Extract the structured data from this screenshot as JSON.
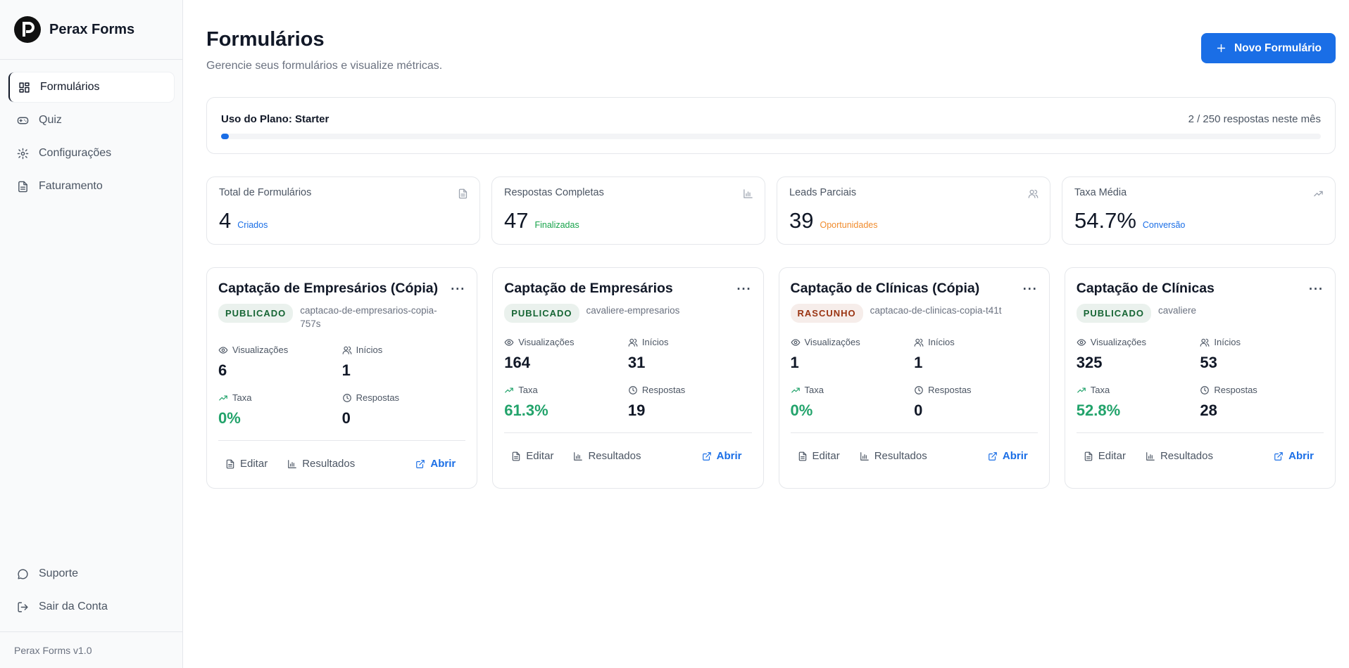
{
  "sidebar": {
    "brand": "Perax Forms",
    "nav": [
      "Formulários",
      "Quiz",
      "Configurações",
      "Faturamento"
    ],
    "bottom": [
      "Suporte",
      "Sair da Conta"
    ],
    "version": "Perax Forms v1.0"
  },
  "header": {
    "title": "Formulários",
    "subtitle": "Gerencie seus formulários e visualize métricas.",
    "button": "Novo Formulário"
  },
  "plan": {
    "label": "Uso do Plano: Starter",
    "usage": "2 / 250 respostas neste mês"
  },
  "stats": [
    {
      "label": "Total de Formulários",
      "value": "4",
      "note": "Criados"
    },
    {
      "label": "Respostas Completas",
      "value": "47",
      "note": "Finalizadas"
    },
    {
      "label": "Leads Parciais",
      "value": "39",
      "note": "Oportunidades"
    },
    {
      "label": "Taxa Média",
      "value": "54.7%",
      "note": "Conversão"
    }
  ],
  "forms": [
    {
      "title": "Captação de Empresários (Cópia)",
      "status": "PUBLICADO",
      "status_color": "#166534",
      "slug": "captacao-de-empresarios-copia-757s",
      "metrics": [
        {
          "label": "Visualizações",
          "value": "6"
        },
        {
          "label": "Inícios",
          "value": "1"
        },
        {
          "label": "Taxa",
          "value": "0%"
        },
        {
          "label": "Respostas",
          "value": "0"
        }
      ],
      "actions": [
        "Editar",
        "Resultados",
        "Abrir"
      ]
    },
    {
      "title": "Captação de Empresários",
      "status": "PUBLICADO",
      "status_color": "#166534",
      "slug": "cavaliere-empresarios",
      "metrics": [
        {
          "label": "Visualizações",
          "value": "164"
        },
        {
          "label": "Inícios",
          "value": "31"
        },
        {
          "label": "Taxa",
          "value": "61.3%"
        },
        {
          "label": "Respostas",
          "value": "19"
        }
      ],
      "actions": [
        "Editar",
        "Resultados",
        "Abrir"
      ]
    },
    {
      "title": "Captação de Clínicas (Cópia)",
      "status": "RASCUNHO",
      "status_color": "#9a3412",
      "slug": "captacao-de-clinicas-copia-t41t",
      "metrics": [
        {
          "label": "Visualizações",
          "value": "1"
        },
        {
          "label": "Inícios",
          "value": "1"
        },
        {
          "label": "Taxa",
          "value": "0%"
        },
        {
          "label": "Respostas",
          "value": "0"
        }
      ],
      "actions": [
        "Editar",
        "Resultados",
        "Abrir"
      ]
    },
    {
      "title": "Captação de Clínicas",
      "status": "PUBLICADO",
      "status_color": "#166534",
      "slug": "cavaliere",
      "metrics": [
        {
          "label": "Visualizações",
          "value": "325"
        },
        {
          "label": "Inícios",
          "value": "53"
        },
        {
          "label": "Taxa",
          "value": "52.8%"
        },
        {
          "label": "Respostas",
          "value": "28"
        }
      ],
      "actions": [
        "Editar",
        "Resultados",
        "Abrir"
      ]
    }
  ]
}
